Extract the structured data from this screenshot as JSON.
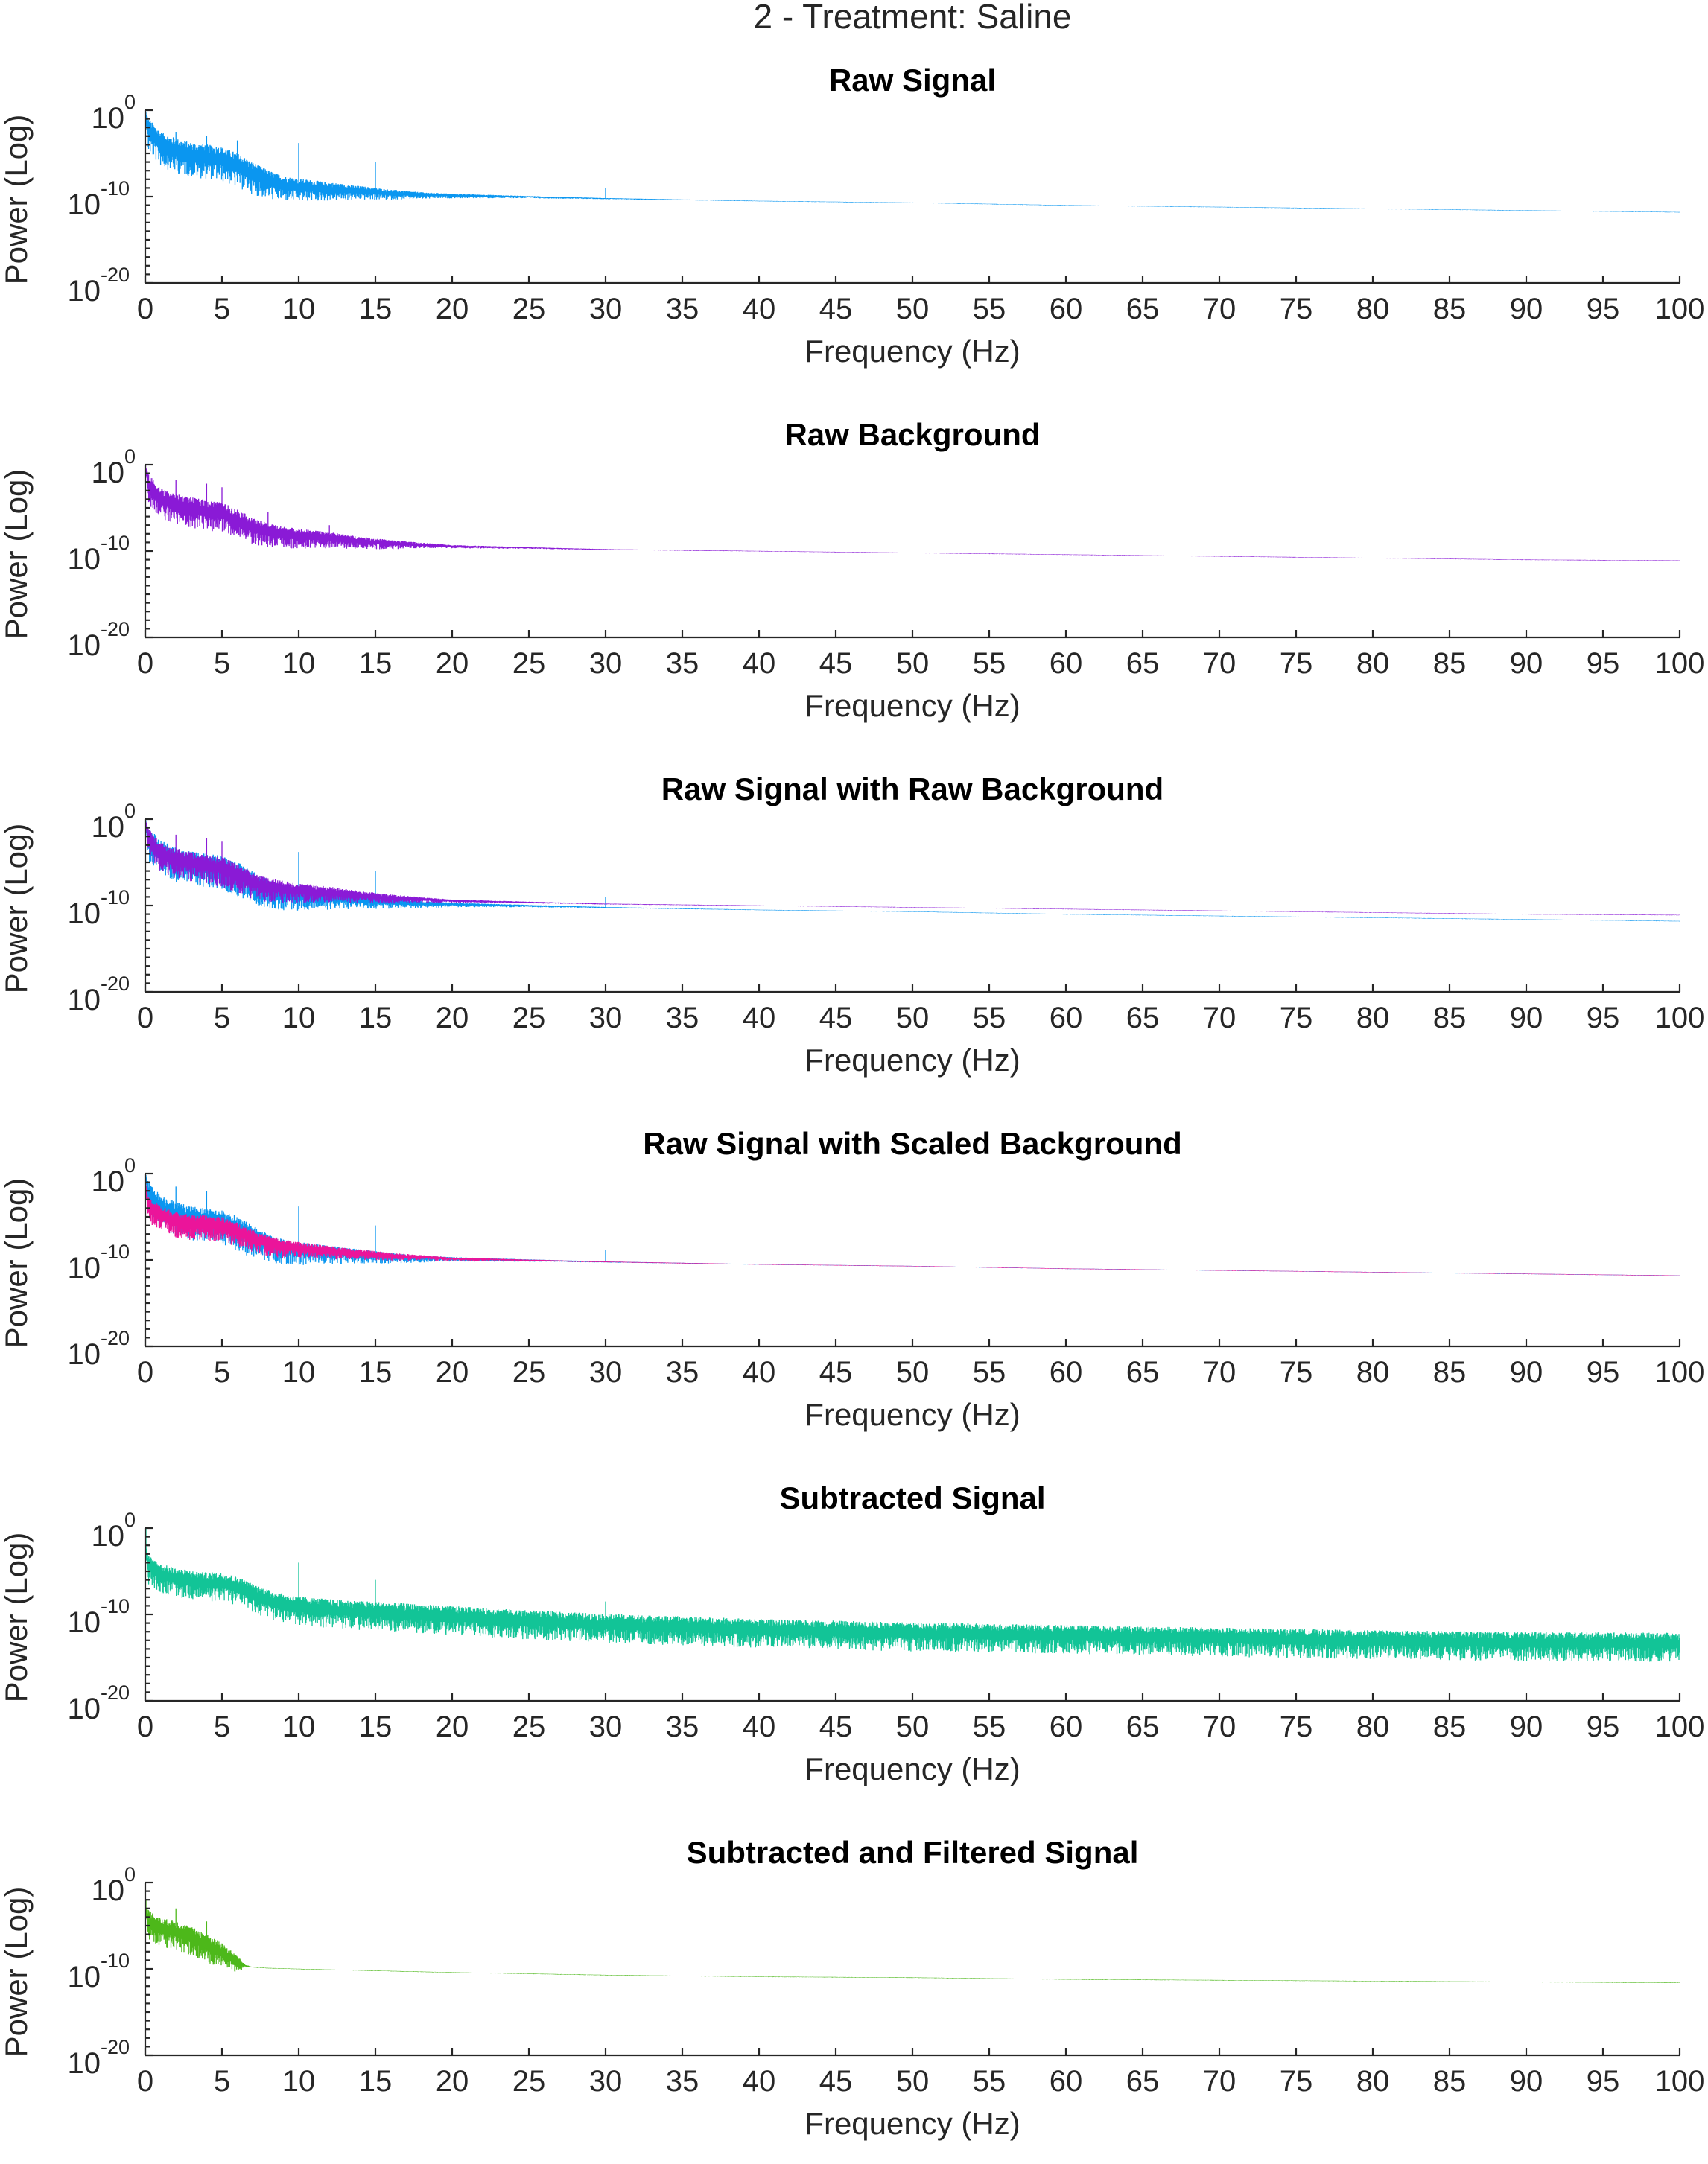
{
  "figure": {
    "title": "2 - Treatment: Saline"
  },
  "chart_data": [
    {
      "type": "line",
      "title": "Raw Signal",
      "xlabel": "Frequency (Hz)",
      "ylabel": "Power (Log)",
      "yscale": "log",
      "xlim": [
        0,
        100
      ],
      "ylim": [
        1e-20,
        1.0
      ],
      "xticks": [
        "0",
        "5",
        "10",
        "15",
        "20",
        "25",
        "30",
        "35",
        "40",
        "45",
        "50",
        "55",
        "60",
        "65",
        "70",
        "75",
        "80",
        "85",
        "90",
        "95",
        "100"
      ],
      "yticks": [
        {
          "base": "10",
          "exp": "0"
        },
        {
          "base": "10",
          "exp": "-10"
        },
        {
          "base": "10",
          "exp": "-20"
        }
      ],
      "series": [
        {
          "color": "#0a96f0",
          "profile": "raw",
          "x": [
            0,
            0.2,
            1,
            2,
            3,
            4,
            5,
            6,
            7,
            8,
            9,
            10,
            12,
            14,
            16,
            18,
            20,
            25,
            30,
            40,
            50,
            60,
            70,
            80,
            90,
            100
          ],
          "y_log10": [
            0,
            -2,
            -3.5,
            -4.3,
            -4.8,
            -5,
            -5.3,
            -6,
            -7,
            -7.8,
            -8.4,
            -8.6,
            -8.9,
            -9.2,
            -9.5,
            -9.7,
            -9.8,
            -10,
            -10.2,
            -10.5,
            -10.7,
            -11,
            -11.2,
            -11.4,
            -11.6,
            -11.8
          ],
          "spread_log10": [
            0.3,
            3,
            3,
            3,
            3,
            3,
            3,
            3,
            2.8,
            2.5,
            2.2,
            2,
            1.6,
            1.2,
            0.9,
            0.6,
            0.4,
            0.2,
            0.1,
            0.05,
            0.05,
            0.05,
            0.05,
            0.05,
            0.05,
            0.05
          ],
          "spikes": [
            {
              "x": 10,
              "y_log10": -3.8
            },
            {
              "x": 15,
              "y_log10": -6
            },
            {
              "x": 30,
              "y_log10": -9
            },
            {
              "x": 2,
              "y_log10": -2.5
            },
            {
              "x": 4,
              "y_log10": -3
            },
            {
              "x": 6,
              "y_log10": -3.5
            }
          ]
        }
      ]
    },
    {
      "type": "line",
      "title": "Raw Background",
      "xlabel": "Frequency (Hz)",
      "ylabel": "Power (Log)",
      "yscale": "log",
      "xlim": [
        0,
        100
      ],
      "ylim": [
        1e-20,
        1.0
      ],
      "xticks": [
        "0",
        "5",
        "10",
        "15",
        "20",
        "25",
        "30",
        "35",
        "40",
        "45",
        "50",
        "55",
        "60",
        "65",
        "70",
        "75",
        "80",
        "85",
        "90",
        "95",
        "100"
      ],
      "yticks": [
        {
          "base": "10",
          "exp": "0"
        },
        {
          "base": "10",
          "exp": "-10"
        },
        {
          "base": "10",
          "exp": "-20"
        }
      ],
      "series": [
        {
          "color": "#8a1ad6",
          "profile": "raw",
          "x": [
            0,
            0.2,
            1,
            2,
            3,
            4,
            5,
            6,
            7,
            8,
            9,
            10,
            12,
            14,
            16,
            18,
            20,
            25,
            30,
            40,
            50,
            60,
            70,
            80,
            90,
            100
          ],
          "y_log10": [
            0,
            -2,
            -3.6,
            -4.3,
            -4.7,
            -5,
            -5.3,
            -6,
            -7,
            -7.5,
            -7.8,
            -8,
            -8.3,
            -8.7,
            -9,
            -9.2,
            -9.4,
            -9.6,
            -9.8,
            -10,
            -10.2,
            -10.4,
            -10.6,
            -10.8,
            -11,
            -11.1
          ],
          "spread_log10": [
            0.3,
            2.6,
            2.6,
            2.6,
            2.6,
            2.6,
            2.6,
            2.5,
            2.3,
            2.1,
            1.9,
            1.7,
            1.4,
            1.1,
            0.8,
            0.5,
            0.3,
            0.15,
            0.08,
            0.05,
            0.05,
            0.05,
            0.05,
            0.05,
            0.05,
            0.05
          ],
          "spikes": [
            {
              "x": 2,
              "y_log10": -1.8
            },
            {
              "x": 4,
              "y_log10": -2.2
            },
            {
              "x": 5,
              "y_log10": -2.6
            },
            {
              "x": 8,
              "y_log10": -5.5
            },
            {
              "x": 12,
              "y_log10": -7
            }
          ]
        }
      ]
    },
    {
      "type": "line",
      "title": "Raw Signal with Raw Background",
      "xlabel": "Frequency (Hz)",
      "ylabel": "Power (Log)",
      "yscale": "log",
      "xlim": [
        0,
        100
      ],
      "ylim": [
        1e-20,
        1.0
      ],
      "xticks": [
        "0",
        "5",
        "10",
        "15",
        "20",
        "25",
        "30",
        "35",
        "40",
        "45",
        "50",
        "55",
        "60",
        "65",
        "70",
        "75",
        "80",
        "85",
        "90",
        "95",
        "100"
      ],
      "yticks": [
        {
          "base": "10",
          "exp": "0"
        },
        {
          "base": "10",
          "exp": "-10"
        },
        {
          "base": "10",
          "exp": "-20"
        }
      ],
      "series": [
        {
          "color": "#0a96f0",
          "profile": "raw",
          "x": [
            0,
            0.2,
            1,
            2,
            3,
            4,
            5,
            6,
            7,
            8,
            9,
            10,
            12,
            14,
            16,
            18,
            20,
            25,
            30,
            40,
            50,
            60,
            70,
            80,
            90,
            100
          ],
          "y_log10": [
            0,
            -2,
            -3.5,
            -4.3,
            -4.8,
            -5,
            -5.3,
            -6,
            -7,
            -7.8,
            -8.4,
            -8.6,
            -8.9,
            -9.2,
            -9.5,
            -9.7,
            -9.8,
            -10,
            -10.2,
            -10.5,
            -10.7,
            -11,
            -11.2,
            -11.4,
            -11.6,
            -11.8
          ],
          "spread_log10": [
            0.3,
            3,
            3,
            3,
            3,
            3,
            3,
            3,
            2.8,
            2.5,
            2.2,
            2,
            1.6,
            1.2,
            0.9,
            0.6,
            0.4,
            0.2,
            0.1,
            0.05,
            0.05,
            0.05,
            0.05,
            0.05,
            0.05,
            0.05
          ],
          "spikes": [
            {
              "x": 10,
              "y_log10": -3.8
            },
            {
              "x": 15,
              "y_log10": -6
            },
            {
              "x": 30,
              "y_log10": -9
            }
          ]
        },
        {
          "color": "#8a1ad6",
          "profile": "raw",
          "x": [
            0,
            0.2,
            1,
            2,
            3,
            4,
            5,
            6,
            7,
            8,
            9,
            10,
            12,
            14,
            16,
            18,
            20,
            25,
            30,
            40,
            50,
            60,
            70,
            80,
            90,
            100
          ],
          "y_log10": [
            0,
            -2,
            -3.6,
            -4.3,
            -4.7,
            -5,
            -5.3,
            -6,
            -7,
            -7.5,
            -7.8,
            -8,
            -8.3,
            -8.7,
            -9,
            -9.2,
            -9.4,
            -9.6,
            -9.8,
            -10,
            -10.2,
            -10.4,
            -10.6,
            -10.8,
            -11,
            -11.1
          ],
          "spread_log10": [
            0.3,
            2.6,
            2.6,
            2.6,
            2.6,
            2.6,
            2.6,
            2.5,
            2.3,
            2.1,
            1.9,
            1.7,
            1.4,
            1.1,
            0.8,
            0.5,
            0.3,
            0.15,
            0.08,
            0.05,
            0.05,
            0.05,
            0.05,
            0.05,
            0.05,
            0.05
          ],
          "spikes": [
            {
              "x": 2,
              "y_log10": -1.8
            },
            {
              "x": 4,
              "y_log10": -2.2
            },
            {
              "x": 5,
              "y_log10": -2.6
            }
          ]
        }
      ]
    },
    {
      "type": "line",
      "title": "Raw Signal with Scaled Background",
      "xlabel": "Frequency (Hz)",
      "ylabel": "Power (Log)",
      "yscale": "log",
      "xlim": [
        0,
        100
      ],
      "ylim": [
        1e-20,
        1.0
      ],
      "xticks": [
        "0",
        "5",
        "10",
        "15",
        "20",
        "25",
        "30",
        "35",
        "40",
        "45",
        "50",
        "55",
        "60",
        "65",
        "70",
        "75",
        "80",
        "85",
        "90",
        "95",
        "100"
      ],
      "yticks": [
        {
          "base": "10",
          "exp": "0"
        },
        {
          "base": "10",
          "exp": "-10"
        },
        {
          "base": "10",
          "exp": "-20"
        }
      ],
      "series": [
        {
          "color": "#0a96f0",
          "profile": "raw",
          "x": [
            0,
            0.2,
            1,
            2,
            3,
            4,
            5,
            6,
            7,
            8,
            9,
            10,
            12,
            14,
            16,
            18,
            20,
            25,
            30,
            40,
            50,
            60,
            70,
            80,
            90,
            100
          ],
          "y_log10": [
            0,
            -2,
            -3.5,
            -4.3,
            -4.8,
            -5,
            -5.3,
            -6,
            -7,
            -7.8,
            -8.4,
            -8.6,
            -8.9,
            -9.2,
            -9.5,
            -9.7,
            -9.8,
            -10,
            -10.2,
            -10.5,
            -10.7,
            -11,
            -11.2,
            -11.4,
            -11.6,
            -11.8
          ],
          "spread_log10": [
            0.3,
            3,
            3,
            3,
            3,
            3,
            3,
            3,
            2.8,
            2.5,
            2.2,
            2,
            1.6,
            1.2,
            0.9,
            0.6,
            0.4,
            0.2,
            0.1,
            0.05,
            0.05,
            0.05,
            0.05,
            0.05,
            0.05,
            0.05
          ],
          "spikes": [
            {
              "x": 2,
              "y_log10": -1.5
            },
            {
              "x": 4,
              "y_log10": -2
            },
            {
              "x": 10,
              "y_log10": -3.8
            },
            {
              "x": 15,
              "y_log10": -6
            },
            {
              "x": 30,
              "y_log10": -8.8
            }
          ]
        },
        {
          "color": "#eb149a",
          "profile": "raw",
          "x": [
            0,
            0.2,
            1,
            2,
            3,
            4,
            5,
            6,
            7,
            8,
            9,
            10,
            12,
            14,
            16,
            18,
            20,
            25,
            30,
            40,
            50,
            60,
            70,
            80,
            90,
            100
          ],
          "y_log10": [
            -1,
            -3.5,
            -4.5,
            -5.2,
            -5.5,
            -5.6,
            -5.8,
            -6.4,
            -7.2,
            -7.8,
            -8.2,
            -8.4,
            -8.8,
            -9.1,
            -9.4,
            -9.6,
            -9.8,
            -10,
            -10.2,
            -10.5,
            -10.7,
            -11,
            -11.2,
            -11.4,
            -11.6,
            -11.8
          ],
          "spread_log10": [
            0.3,
            2.2,
            2.2,
            2.2,
            2.2,
            2.2,
            2.2,
            2.1,
            2,
            1.8,
            1.6,
            1.4,
            1.2,
            0.9,
            0.7,
            0.5,
            0.3,
            0.15,
            0.08,
            0.05,
            0.05,
            0.05,
            0.05,
            0.05,
            0.05,
            0.05
          ],
          "spikes": []
        }
      ]
    },
    {
      "type": "line",
      "title": "Subtracted Signal",
      "xlabel": "Frequency (Hz)",
      "ylabel": "Power (Log)",
      "yscale": "log",
      "xlim": [
        0,
        100
      ],
      "ylim": [
        1e-20,
        1.0
      ],
      "xticks": [
        "0",
        "5",
        "10",
        "15",
        "20",
        "25",
        "30",
        "35",
        "40",
        "45",
        "50",
        "55",
        "60",
        "65",
        "70",
        "75",
        "80",
        "85",
        "90",
        "95",
        "100"
      ],
      "yticks": [
        {
          "base": "10",
          "exp": "0"
        },
        {
          "base": "10",
          "exp": "-10"
        },
        {
          "base": "10",
          "exp": "-20"
        }
      ],
      "series": [
        {
          "color": "#12c497",
          "profile": "subtracted",
          "x": [
            0,
            0.2,
            1,
            2,
            3,
            4,
            5,
            6,
            7,
            8,
            9,
            10,
            12,
            14,
            16,
            18,
            20,
            25,
            30,
            40,
            50,
            60,
            70,
            80,
            90,
            100
          ],
          "y_log10": [
            -2,
            -4,
            -5,
            -5.5,
            -5.8,
            -6,
            -6,
            -6.5,
            -7.3,
            -8,
            -8.5,
            -8.8,
            -9.1,
            -9.3,
            -9.5,
            -9.7,
            -9.9,
            -10.4,
            -10.8,
            -11.4,
            -11.8,
            -12.1,
            -12.4,
            -12.7,
            -12.9,
            -13
          ],
          "spread_log10": [
            0.5,
            2.5,
            2.5,
            2.5,
            2.5,
            2.5,
            2.5,
            2.5,
            2.5,
            2.5,
            2.5,
            2.5,
            2.5,
            2.5,
            2.5,
            2.5,
            2.5,
            2.5,
            2.5,
            2.5,
            2.5,
            2.5,
            2.5,
            2.5,
            2.5,
            2.5
          ],
          "spikes": [
            {
              "x": 0.1,
              "y_log10": 0
            },
            {
              "x": 10,
              "y_log10": -4
            },
            {
              "x": 15,
              "y_log10": -6
            },
            {
              "x": 30,
              "y_log10": -8.5
            }
          ]
        }
      ]
    },
    {
      "type": "line",
      "title": "Subtracted and Filtered Signal",
      "xlabel": "Frequency (Hz)",
      "ylabel": "Power (Log)",
      "yscale": "log",
      "xlim": [
        0,
        100
      ],
      "ylim": [
        1e-20,
        1.0
      ],
      "xticks": [
        "0",
        "5",
        "10",
        "15",
        "20",
        "25",
        "30",
        "35",
        "40",
        "45",
        "50",
        "55",
        "60",
        "65",
        "70",
        "75",
        "80",
        "85",
        "90",
        "95",
        "100"
      ],
      "yticks": [
        {
          "base": "10",
          "exp": "0"
        },
        {
          "base": "10",
          "exp": "-10"
        },
        {
          "base": "10",
          "exp": "-20"
        }
      ],
      "series": [
        {
          "color": "#4db81a",
          "profile": "filtered",
          "x": [
            0,
            0.2,
            1,
            2,
            3,
            4,
            5,
            6,
            6.5,
            7,
            8,
            10,
            15,
            20,
            30,
            40,
            50,
            60,
            70,
            80,
            90,
            100
          ],
          "y_log10": [
            -3,
            -4,
            -5,
            -5.3,
            -6,
            -6.8,
            -7.8,
            -9,
            -9.6,
            -9.8,
            -9.9,
            -10,
            -10.2,
            -10.4,
            -10.7,
            -10.9,
            -11,
            -11.2,
            -11.3,
            -11.4,
            -11.5,
            -11.6
          ],
          "spread_log10": [
            0.5,
            2.5,
            2.5,
            2.5,
            2.5,
            2.5,
            2.3,
            1.5,
            0.3,
            0.05,
            0.05,
            0.05,
            0.05,
            0.05,
            0.05,
            0.05,
            0.05,
            0.05,
            0.05,
            0.05,
            0.05,
            0.05
          ],
          "spikes": [
            {
              "x": 0.1,
              "y_log10": -2
            },
            {
              "x": 2,
              "y_log10": -3
            },
            {
              "x": 4,
              "y_log10": -4.5
            }
          ]
        }
      ]
    }
  ]
}
